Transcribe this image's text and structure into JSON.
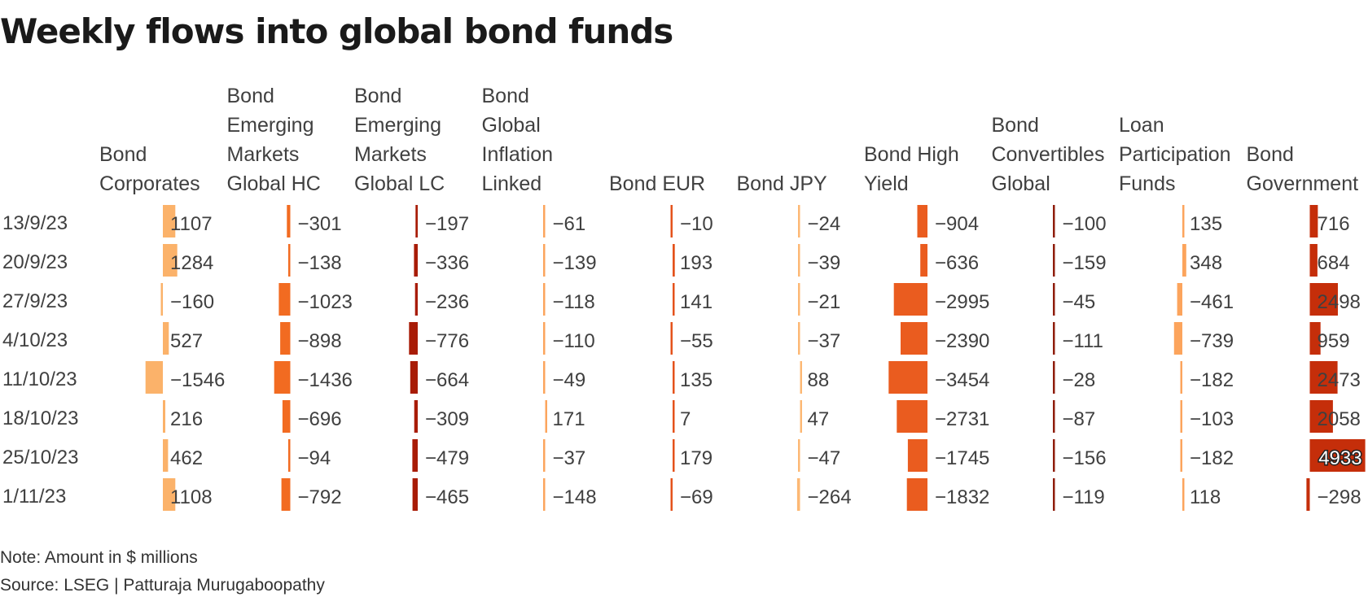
{
  "title": "Weekly flows into global bond funds",
  "note": "Note: Amount in $ millions",
  "source": "Source: LSEG | Patturaja Murugaboopathy",
  "chart_data": {
    "type": "bar",
    "title": "Weekly flows into global bond funds",
    "unit": "$ millions",
    "categories": [
      "13/9/23",
      "20/9/23",
      "27/9/23",
      "4/10/23",
      "11/10/23",
      "18/10/23",
      "25/10/23",
      "1/11/23"
    ],
    "series": [
      {
        "name": "Bond Corporates",
        "header": [
          "Bond",
          "Corporates"
        ],
        "color": "#fbb26a",
        "values": [
          1107,
          1284,
          -160,
          527,
          -1546,
          216,
          462,
          1108
        ]
      },
      {
        "name": "Bond Emerging Markets Global HC",
        "header": [
          "Bond",
          "Emerging",
          "Markets",
          "Global HC"
        ],
        "color": "#f26b21",
        "values": [
          -301,
          -138,
          -1023,
          -898,
          -1436,
          -696,
          -94,
          -792
        ]
      },
      {
        "name": "Bond Emerging Markets Global LC",
        "header": [
          "Bond",
          "Emerging",
          "Markets",
          "Global LC"
        ],
        "color": "#a81c07",
        "values": [
          -197,
          -336,
          -236,
          -776,
          -664,
          -309,
          -479,
          -465
        ]
      },
      {
        "name": "Bond Global Inflation Linked",
        "header": [
          "Bond",
          "Global",
          "Inflation",
          "Linked"
        ],
        "color": "#fca55d",
        "values": [
          -61,
          -139,
          -118,
          -110,
          -49,
          171,
          -37,
          -148
        ]
      },
      {
        "name": "Bond EUR",
        "header": [
          "Bond EUR"
        ],
        "color": "#e4521b",
        "values": [
          -10,
          193,
          141,
          -55,
          135,
          7,
          179,
          -69
        ]
      },
      {
        "name": "Bond JPY",
        "header": [
          "Bond JPY"
        ],
        "color": "#fdb874",
        "values": [
          -24,
          -39,
          -21,
          -37,
          88,
          47,
          -47,
          -264
        ]
      },
      {
        "name": "Bond High Yield",
        "header": [
          "Bond High",
          "Yield"
        ],
        "color": "#ea5c1f",
        "values": [
          -904,
          -636,
          -2995,
          -2390,
          -3454,
          -2731,
          -1745,
          -1832
        ]
      },
      {
        "name": "Bond Convertibles Global",
        "header": [
          "Bond",
          "Convertibles",
          "Global"
        ],
        "color": "#8f1d0c",
        "values": [
          -100,
          -159,
          -45,
          -111,
          -28,
          -87,
          -156,
          -119
        ]
      },
      {
        "name": "Loan Participation Funds",
        "header": [
          "Loan",
          "Participation",
          "Funds"
        ],
        "color": "#fca45c",
        "values": [
          135,
          348,
          -461,
          -739,
          -182,
          -103,
          -182,
          118
        ]
      },
      {
        "name": "Bond Government",
        "header": [
          "Bond",
          "Government"
        ],
        "color": "#c52e0a",
        "values": [
          716,
          684,
          2498,
          959,
          2473,
          2058,
          4933,
          -298
        ]
      }
    ]
  }
}
